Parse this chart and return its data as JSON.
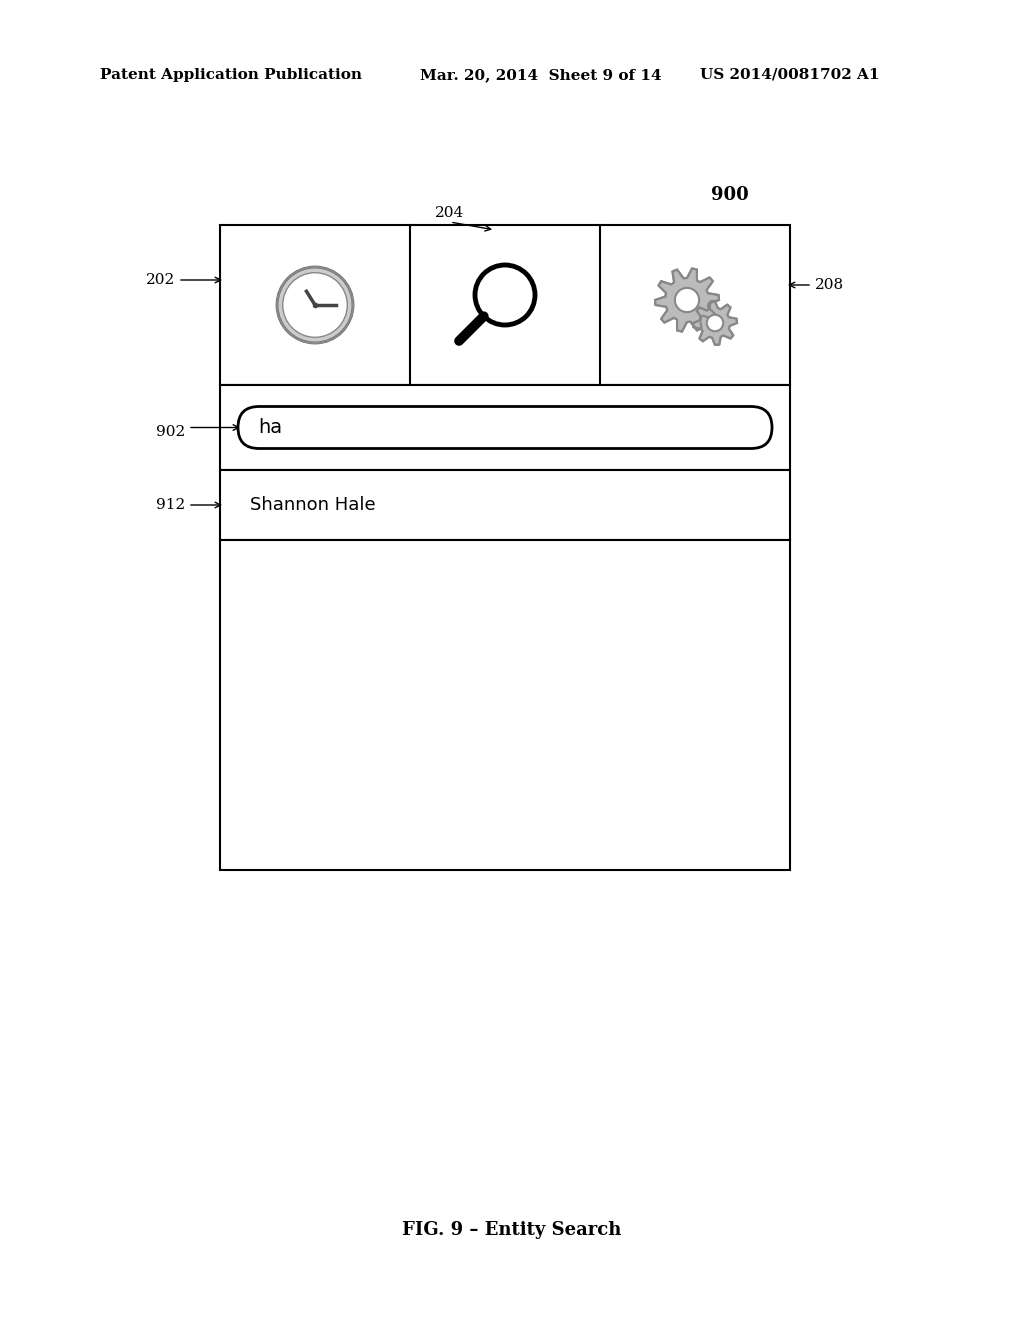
{
  "title_left": "Patent Application Publication",
  "title_mid": "Mar. 20, 2014  Sheet 9 of 14",
  "title_right": "US 2014/0081702 A1",
  "fig_label": "FIG. 9 – Entity Search",
  "diagram_label": "900",
  "label_202": "202",
  "label_204": "204",
  "label_208": "208",
  "label_902": "902",
  "label_912": "912",
  "search_text": "ha",
  "result_text": "Shannon Hale",
  "bg_color": "#ffffff",
  "box_color": "#000000",
  "icon_gray": "#aaaaaa",
  "icon_dark": "#555555"
}
